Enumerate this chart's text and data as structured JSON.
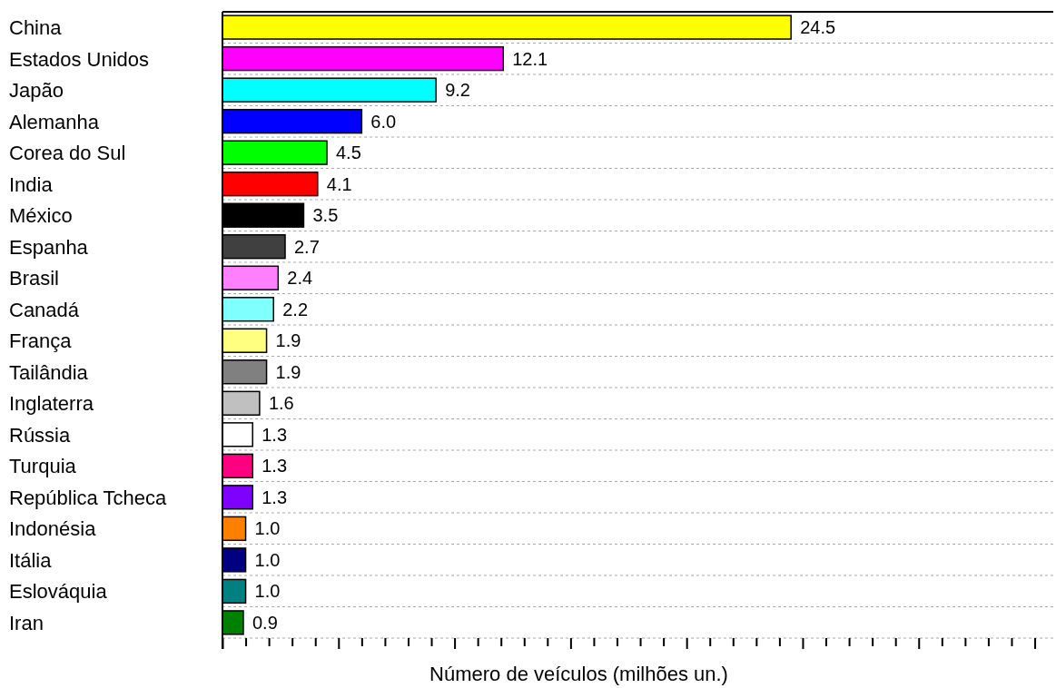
{
  "chart_data": {
    "type": "bar",
    "orientation": "horizontal",
    "xlabel": "Número de veículos (milhões un.)",
    "categories": [
      "China",
      "Estados Unidos",
      "Japão",
      "Alemanha",
      "Corea do Sul",
      "India",
      "México",
      "Espanha",
      "Brasil",
      "Canadá",
      "França",
      "Tailândia",
      "Inglaterra",
      "Rússia",
      "Turquia",
      "República Tcheca",
      "Indonésia",
      "Itália",
      "Eslováquia",
      "Iran"
    ],
    "values": [
      24.5,
      12.1,
      9.2,
      6.0,
      4.5,
      4.1,
      3.5,
      2.7,
      2.4,
      2.2,
      1.9,
      1.9,
      1.6,
      1.3,
      1.3,
      1.3,
      1.0,
      1.0,
      1.0,
      0.9
    ],
    "value_labels": [
      "24.5",
      "12.1",
      "9.2",
      "6.0",
      "4.5",
      "4.1",
      "3.5",
      "2.7",
      "2.4",
      "2.2",
      "1.9",
      "1.9",
      "1.6",
      "1.3",
      "1.3",
      "1.3",
      "1.0",
      "1.0",
      "1.0",
      "0.9"
    ],
    "colors": [
      "#ffff00",
      "#ff00ff",
      "#00ffff",
      "#0000ff",
      "#00ff00",
      "#ff0000",
      "#000000",
      "#404040",
      "#ff80ff",
      "#80ffff",
      "#ffff80",
      "#808080",
      "#c0c0c0",
      "#ffffff",
      "#ff0080",
      "#8000ff",
      "#ff8000",
      "#000080",
      "#008080",
      "#008000"
    ],
    "xlim": [
      0,
      35.8
    ],
    "xticks": [
      {
        "value": 0,
        "label": null
      },
      {
        "value": 1,
        "label": null
      },
      {
        "value": 2,
        "label": null
      },
      {
        "value": 3,
        "label": null
      },
      {
        "value": 4,
        "label": null
      },
      {
        "value": 5,
        "label": null
      },
      {
        "value": 6,
        "label": null
      },
      {
        "value": 7,
        "label": null
      },
      {
        "value": 8,
        "label": null
      },
      {
        "value": 9,
        "label": null
      },
      {
        "value": 10,
        "label": null
      },
      {
        "value": 11,
        "label": null
      },
      {
        "value": 12,
        "label": null
      },
      {
        "value": 13,
        "label": null
      },
      {
        "value": 14,
        "label": null
      },
      {
        "value": 15,
        "label": null
      },
      {
        "value": 16,
        "label": null
      },
      {
        "value": 17,
        "label": null
      },
      {
        "value": 18,
        "label": null
      },
      {
        "value": 19,
        "label": null
      },
      {
        "value": 20,
        "label": null
      },
      {
        "value": 21,
        "label": null
      },
      {
        "value": 22,
        "label": null
      },
      {
        "value": 23,
        "label": null
      },
      {
        "value": 24,
        "label": null
      },
      {
        "value": 25,
        "label": null
      },
      {
        "value": 26,
        "label": null
      },
      {
        "value": 27,
        "label": null
      },
      {
        "value": 28,
        "label": null
      },
      {
        "value": 29,
        "label": null
      },
      {
        "value": 30,
        "label": null
      },
      {
        "value": 31,
        "label": null
      },
      {
        "value": 32,
        "label": null
      },
      {
        "value": 33,
        "label": null
      },
      {
        "value": 34,
        "label": null
      },
      {
        "value": 35,
        "label": null
      }
    ],
    "grid": "y",
    "tick_labels": "y",
    "legend": false
  }
}
